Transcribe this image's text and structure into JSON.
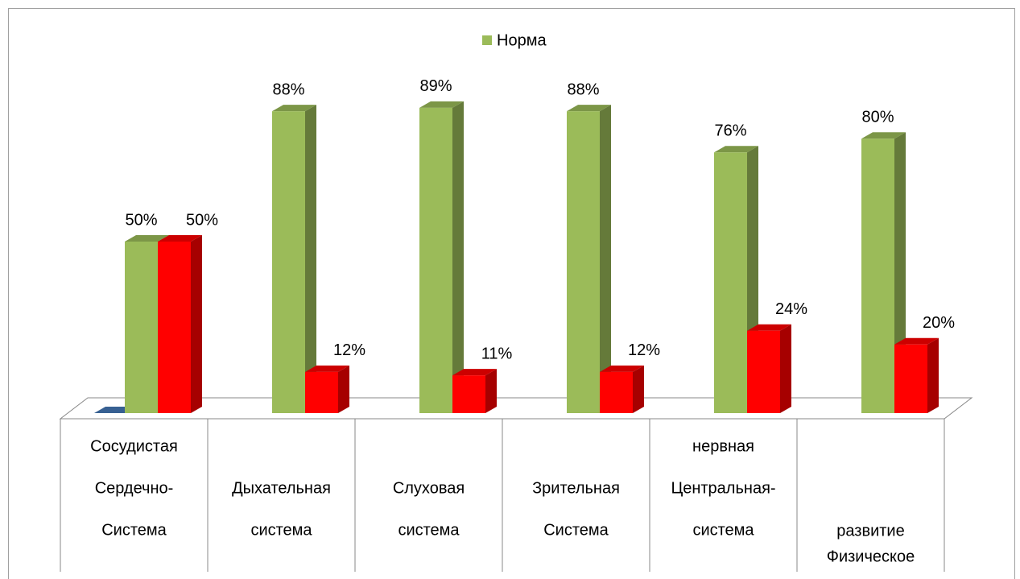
{
  "chart_data": {
    "type": "bar3d",
    "categories": [
      [
        "Сосудистая",
        "Сердечно-",
        "Система"
      ],
      [
        "Дыхательная",
        "система"
      ],
      [
        "Слуховая",
        "система"
      ],
      [
        "Зрительная",
        "Система"
      ],
      [
        "нервная",
        "Центральная-",
        "система"
      ],
      [
        "развитие",
        "Физическое"
      ]
    ],
    "series": [
      {
        "color": "#376092",
        "values": [
          0,
          null,
          null,
          null,
          null,
          null
        ]
      },
      {
        "name": "Норма",
        "color": "#9bbb59",
        "values": [
          50,
          88,
          89,
          88,
          76,
          80
        ],
        "value_labels": [
          "50%",
          "88%",
          "89%",
          "88%",
          "76%",
          "80%"
        ]
      },
      {
        "color": "#ff0000",
        "values": [
          50,
          12,
          11,
          12,
          24,
          20
        ],
        "value_labels": [
          "50%",
          "12%",
          "11%",
          "12%",
          "24%",
          "20%"
        ]
      }
    ],
    "ylim": [
      0,
      100
    ],
    "legend": "top"
  }
}
